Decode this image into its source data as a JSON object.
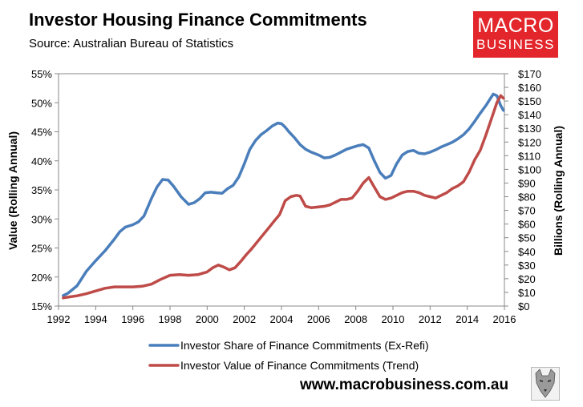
{
  "header": {
    "title": "Investor Housing Finance Commitments",
    "source": "Source: Australian Bureau of Statistics"
  },
  "logo": {
    "line1": "MACRO",
    "line2": "BUSINESS"
  },
  "footer": {
    "website": "www.macrobusiness.com.au",
    "emblem": "wolf-head-emblem"
  },
  "colors": {
    "series_share": "#4a7ebb",
    "series_value": "#be4b48",
    "logo_bg": "#e3262b"
  },
  "chart_data": {
    "type": "line",
    "xlabel": "",
    "ylabel_left": "Value (Rolling Annual)",
    "ylabel_right": "Billions (Rolling Annual)",
    "x_ticks": [
      "1992",
      "1994",
      "1996",
      "1998",
      "2000",
      "2002",
      "2004",
      "2006",
      "2008",
      "2010",
      "2012",
      "2014",
      "2016"
    ],
    "x_tick_values": [
      1992,
      1994,
      1996,
      1998,
      2000,
      2002,
      2004,
      2006,
      2008,
      2010,
      2012,
      2014,
      2016
    ],
    "xlim": [
      1992,
      2016
    ],
    "ylim_left": [
      15,
      55
    ],
    "ylim_right": [
      0,
      170
    ],
    "y_left_ticks": [
      "15%",
      "20%",
      "25%",
      "30%",
      "35%",
      "40%",
      "45%",
      "50%",
      "55%"
    ],
    "y_left_tick_values": [
      15,
      20,
      25,
      30,
      35,
      40,
      45,
      50,
      55
    ],
    "y_right_ticks": [
      "$0",
      "$10",
      "$20",
      "$30",
      "$40",
      "$50",
      "$60",
      "$70",
      "$80",
      "$90",
      "$100",
      "$110",
      "$120",
      "$130",
      "$140",
      "$150",
      "$160",
      "$170"
    ],
    "y_right_tick_values": [
      0,
      10,
      20,
      30,
      40,
      50,
      60,
      70,
      80,
      90,
      100,
      110,
      120,
      130,
      140,
      150,
      160,
      170
    ],
    "grid": false,
    "legend_position": "bottom-center",
    "series": [
      {
        "name": "Investor Share of Finance Commitments (Ex-Refi)",
        "axis": "left",
        "color": "#4a7ebb",
        "x": [
          1992.25,
          1992.5,
          1993,
          1993.5,
          1994,
          1994.5,
          1995,
          1995.3,
          1995.6,
          1996,
          1996.3,
          1996.6,
          1997,
          1997.3,
          1997.6,
          1997.9,
          1998.2,
          1998.6,
          1999,
          1999.3,
          1999.6,
          1999.9,
          2000.2,
          2000.5,
          2000.8,
          2001.1,
          2001.4,
          2001.7,
          2002,
          2002.3,
          2002.6,
          2002.9,
          2003.2,
          2003.5,
          2003.8,
          2004,
          2004.2,
          2004.4,
          2004.7,
          2005,
          2005.3,
          2005.6,
          2006,
          2006.3,
          2006.6,
          2006.9,
          2007.2,
          2007.5,
          2007.8,
          2008.1,
          2008.4,
          2008.7,
          2009,
          2009.3,
          2009.6,
          2009.9,
          2010.2,
          2010.5,
          2010.8,
          2011.1,
          2011.4,
          2011.7,
          2012,
          2012.3,
          2012.6,
          2012.9,
          2013.2,
          2013.5,
          2013.8,
          2014.1,
          2014.4,
          2014.7,
          2015,
          2015.2,
          2015.4,
          2015.6,
          2015.8,
          2015.95
        ],
        "values": [
          16.8,
          17.2,
          18.5,
          21,
          22.8,
          24.5,
          26.5,
          27.8,
          28.6,
          29,
          29.5,
          30.5,
          33.5,
          35.5,
          36.8,
          36.7,
          35.6,
          33.8,
          32.5,
          32.8,
          33.5,
          34.5,
          34.6,
          34.5,
          34.4,
          35.2,
          35.8,
          37.2,
          39.5,
          42,
          43.5,
          44.5,
          45.2,
          46,
          46.5,
          46.4,
          45.8,
          45,
          44,
          42.8,
          42,
          41.5,
          41,
          40.5,
          40.6,
          41,
          41.5,
          42,
          42.3,
          42.6,
          42.8,
          42.2,
          40,
          38,
          37,
          37.5,
          39.5,
          41,
          41.6,
          41.8,
          41.3,
          41.2,
          41.5,
          41.9,
          42.4,
          42.8,
          43.2,
          43.8,
          44.5,
          45.5,
          46.8,
          48.2,
          49.5,
          50.5,
          51.5,
          51.2,
          49.5,
          48.7
        ]
      },
      {
        "name": "Investor Value of Finance Commitments (Trend)",
        "axis": "right",
        "color": "#be4b48",
        "x": [
          1992.25,
          1992.5,
          1993,
          1993.5,
          1994,
          1994.5,
          1995,
          1995.5,
          1996,
          1996.5,
          1997,
          1997.5,
          1998,
          1998.5,
          1999,
          1999.5,
          2000,
          2000.3,
          2000.6,
          2000.9,
          2001.2,
          2001.5,
          2001.8,
          2002.1,
          2002.4,
          2002.7,
          2003,
          2003.3,
          2003.6,
          2003.9,
          2004.2,
          2004.5,
          2004.8,
          2005,
          2005.3,
          2005.6,
          2006,
          2006.3,
          2006.6,
          2006.9,
          2007.2,
          2007.5,
          2007.8,
          2008.1,
          2008.4,
          2008.7,
          2009,
          2009.3,
          2009.6,
          2009.9,
          2010.2,
          2010.5,
          2010.8,
          2011.1,
          2011.4,
          2011.7,
          2012,
          2012.3,
          2012.6,
          2012.9,
          2013.2,
          2013.5,
          2013.8,
          2014.1,
          2014.4,
          2014.7,
          2015,
          2015.2,
          2015.4,
          2015.6,
          2015.8,
          2015.95
        ],
        "values": [
          6,
          6.5,
          7.5,
          9,
          11,
          13,
          14,
          14,
          14,
          14.5,
          16,
          19.5,
          22.5,
          23,
          22.5,
          23,
          25,
          28,
          30,
          28.5,
          26.5,
          28,
          32.5,
          37.5,
          42,
          47,
          52,
          57,
          62,
          67,
          77,
          80,
          81,
          80.5,
          73,
          72,
          72.5,
          73,
          74,
          76,
          78,
          78,
          79,
          84,
          90,
          94,
          87,
          80,
          78,
          79,
          81,
          83,
          84,
          84,
          83,
          81,
          80,
          79,
          81,
          83,
          86,
          88,
          91,
          98,
          107,
          114,
          125,
          133,
          141,
          149,
          154,
          152
        ]
      }
    ]
  }
}
